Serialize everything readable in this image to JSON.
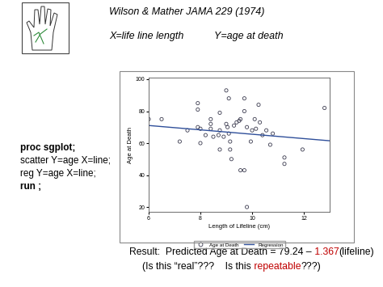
{
  "header": {
    "citation": "Wilson & Mather JAMA 229 (1974)",
    "x_def": "X=life line length",
    "y_def": "Y=age at death"
  },
  "code": [
    {
      "text": "proc sgplot;",
      "bold": true
    },
    {
      "text": "scatter Y=age X=line;",
      "bold": false
    },
    {
      "text": "reg Y=age X=line;",
      "bold": false
    },
    {
      "text": "run ;",
      "bold": true
    }
  ],
  "result": [
    [
      {
        "text": "Result:  Predicted Age at Death = 79.24 –",
        "color": "#000000"
      },
      {
        "text": " 1.367",
        "color": "#c00000"
      },
      {
        "text": "(lifeline)",
        "color": "#000000"
      }
    ],
    [
      {
        "text": "(Is this “real”???    Is this",
        "color": "#000000"
      },
      {
        "text": " repeatable",
        "color": "#c00000"
      },
      {
        "text": "???)",
        "color": "#000000"
      }
    ]
  ],
  "chart_data": {
    "type": "scatter",
    "xlabel": "Length of Lifeline (cm)",
    "ylabel": "Age at Death",
    "xlim": [
      6,
      13
    ],
    "ylim": [
      17,
      101
    ],
    "xticks": [
      6,
      8,
      10,
      12
    ],
    "yticks": [
      20,
      40,
      60,
      80,
      100
    ],
    "legend": "lower center",
    "series": [
      {
        "name": "Age at Death",
        "type": "scatter",
        "marker": "circle",
        "color": "#3c3c50",
        "x": [
          6.0,
          6.5,
          7.2,
          7.5,
          7.9,
          7.9,
          7.9,
          8.0,
          8.0,
          8.2,
          8.4,
          8.4,
          8.4,
          8.5,
          8.7,
          8.75,
          8.75,
          8.75,
          8.9,
          9.0,
          9.1,
          9.0,
          9.05,
          9.1,
          9.15,
          9.15,
          9.2,
          9.3,
          9.4,
          9.5,
          9.55,
          9.55,
          9.7,
          9.7,
          9.7,
          9.8,
          9.8,
          9.95,
          10.0,
          10.1,
          10.15,
          10.25,
          10.3,
          10.4,
          10.55,
          10.7,
          10.8,
          11.25,
          11.25,
          11.95,
          12.8
        ],
        "values": [
          75,
          75,
          61,
          68,
          85,
          81,
          70,
          69,
          60,
          65,
          72,
          75,
          69,
          64,
          65,
          79,
          68,
          56,
          64,
          93,
          88,
          72,
          70,
          66,
          61,
          56,
          50,
          71,
          73,
          74,
          75,
          43,
          43,
          88,
          80,
          20,
          70,
          61,
          68,
          75,
          69,
          84,
          73,
          65,
          68,
          59,
          66,
          51,
          47,
          56,
          82
        ]
      },
      {
        "name": "Regression",
        "type": "line",
        "line_style": "solid",
        "color": "#2f4f9a",
        "intercept": 79.24,
        "slope": -1.367
      }
    ]
  }
}
